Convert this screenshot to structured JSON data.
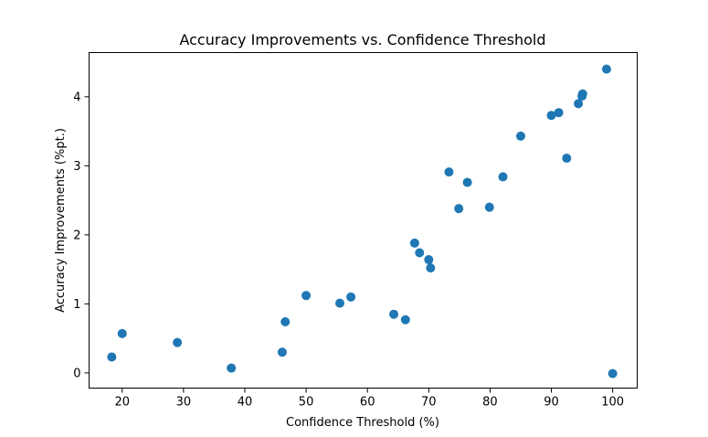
{
  "chart_data": {
    "type": "scatter",
    "title": "Accuracy Improvements vs. Confidence Threshold",
    "xlabel": "Confidence Threshold (%)",
    "ylabel": "Accuracy Improvements (%pt.)",
    "xlim": [
      14.6,
      104.0
    ],
    "ylim": [
      -0.22,
      4.64
    ],
    "xticks": [
      20,
      30,
      40,
      50,
      60,
      70,
      80,
      90,
      100
    ],
    "yticks": [
      0,
      1,
      2,
      3,
      4
    ],
    "grid": false,
    "color": "#1f77b4",
    "points": [
      {
        "x": 18.3,
        "y": 0.23
      },
      {
        "x": 20.0,
        "y": 0.57
      },
      {
        "x": 29.0,
        "y": 0.44
      },
      {
        "x": 37.8,
        "y": 0.07
      },
      {
        "x": 46.1,
        "y": 0.3
      },
      {
        "x": 46.6,
        "y": 0.74
      },
      {
        "x": 50.0,
        "y": 1.12
      },
      {
        "x": 55.5,
        "y": 1.01
      },
      {
        "x": 57.3,
        "y": 1.1
      },
      {
        "x": 64.3,
        "y": 0.85
      },
      {
        "x": 66.2,
        "y": 0.77
      },
      {
        "x": 67.7,
        "y": 1.88
      },
      {
        "x": 68.5,
        "y": 1.74
      },
      {
        "x": 70.0,
        "y": 1.64
      },
      {
        "x": 70.3,
        "y": 1.52
      },
      {
        "x": 73.3,
        "y": 2.91
      },
      {
        "x": 74.9,
        "y": 2.38
      },
      {
        "x": 76.3,
        "y": 2.76
      },
      {
        "x": 79.9,
        "y": 2.4
      },
      {
        "x": 82.1,
        "y": 2.84
      },
      {
        "x": 85.0,
        "y": 3.43
      },
      {
        "x": 90.0,
        "y": 3.73
      },
      {
        "x": 91.2,
        "y": 3.77
      },
      {
        "x": 92.5,
        "y": 3.11
      },
      {
        "x": 94.4,
        "y": 3.9
      },
      {
        "x": 95.0,
        "y": 4.01
      },
      {
        "x": 95.1,
        "y": 4.04
      },
      {
        "x": 99.0,
        "y": 4.4
      },
      {
        "x": 100.0,
        "y": -0.01
      }
    ]
  }
}
